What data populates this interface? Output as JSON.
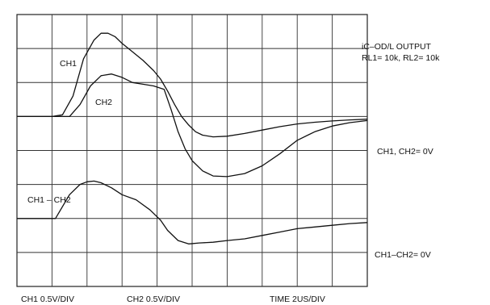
{
  "chart_data": {
    "type": "line",
    "title": "iC–OD/L OUTPUT",
    "subtitle": "RL1= 10k, RL2= 10k",
    "xlabel": "TIME 2US/DIV",
    "ylabels": [
      "CH1 0.5V/DIV",
      "CH2 0.5V/DIV"
    ],
    "xlim": [
      0,
      10
    ],
    "ylim": [
      -4,
      4
    ],
    "grid": true,
    "series": [
      {
        "name": "CH1",
        "x": [
          0,
          0.5,
          1.0,
          1.3,
          1.6,
          1.9,
          2.2,
          2.4,
          2.6,
          2.8,
          3.0,
          3.3,
          3.6,
          3.9,
          4.1,
          4.3,
          4.5,
          4.7,
          4.9,
          5.1,
          5.3,
          5.6,
          6.0,
          6.5,
          7.0,
          7.5,
          8.0,
          8.5,
          9.0,
          9.5,
          10.0
        ],
        "y": [
          1.0,
          1.0,
          1.0,
          1.05,
          1.6,
          2.7,
          3.25,
          3.45,
          3.45,
          3.35,
          3.15,
          2.9,
          2.65,
          2.35,
          2.1,
          1.75,
          1.35,
          1.0,
          0.75,
          0.55,
          0.45,
          0.4,
          0.42,
          0.5,
          0.6,
          0.7,
          0.78,
          0.83,
          0.87,
          0.9,
          0.92
        ]
      },
      {
        "name": "CH2",
        "x": [
          0,
          0.5,
          1.0,
          1.5,
          1.8,
          2.1,
          2.4,
          2.7,
          3.0,
          3.3,
          3.6,
          3.9,
          4.2,
          4.4,
          4.6,
          4.8,
          5.0,
          5.3,
          5.6,
          6.0,
          6.5,
          7.0,
          7.5,
          8.0,
          8.5,
          9.0,
          9.5,
          10.0
        ],
        "y": [
          1.0,
          1.0,
          1.0,
          1.0,
          1.35,
          1.9,
          2.2,
          2.25,
          2.15,
          2.0,
          1.95,
          1.9,
          1.8,
          1.2,
          0.55,
          0.05,
          -0.3,
          -0.6,
          -0.75,
          -0.77,
          -0.68,
          -0.45,
          -0.1,
          0.3,
          0.55,
          0.72,
          0.82,
          0.88
        ]
      },
      {
        "name": "CH1 – CH2",
        "x": [
          0,
          0.5,
          1.1,
          1.5,
          1.8,
          2.0,
          2.2,
          2.4,
          2.7,
          3.0,
          3.4,
          3.8,
          4.1,
          4.3,
          4.6,
          4.9,
          5.2,
          5.6,
          6.0,
          6.5,
          7.0,
          7.5,
          8.0,
          8.5,
          9.0,
          9.5,
          10.0
        ],
        "y": [
          -2.0,
          -2.0,
          -2.0,
          -1.3,
          -1.0,
          -0.92,
          -0.9,
          -0.95,
          -1.1,
          -1.3,
          -1.45,
          -1.75,
          -2.05,
          -2.35,
          -2.65,
          -2.75,
          -2.72,
          -2.7,
          -2.65,
          -2.6,
          -2.5,
          -2.4,
          -2.3,
          -2.25,
          -2.2,
          -2.15,
          -2.12
        ]
      }
    ],
    "annotations": {
      "ch1_trace": "CH1",
      "ch2_trace": "CH2",
      "diff_trace": "CH1 – CH2",
      "ref_upper": "CH1, CH2= 0V",
      "ref_lower": "CH1–CH2= 0V",
      "scale_ch1": "CH1 0.5V/DIV",
      "scale_ch2": "CH2 0.5V/DIV",
      "scale_time": "TIME 2US/DIV"
    }
  }
}
